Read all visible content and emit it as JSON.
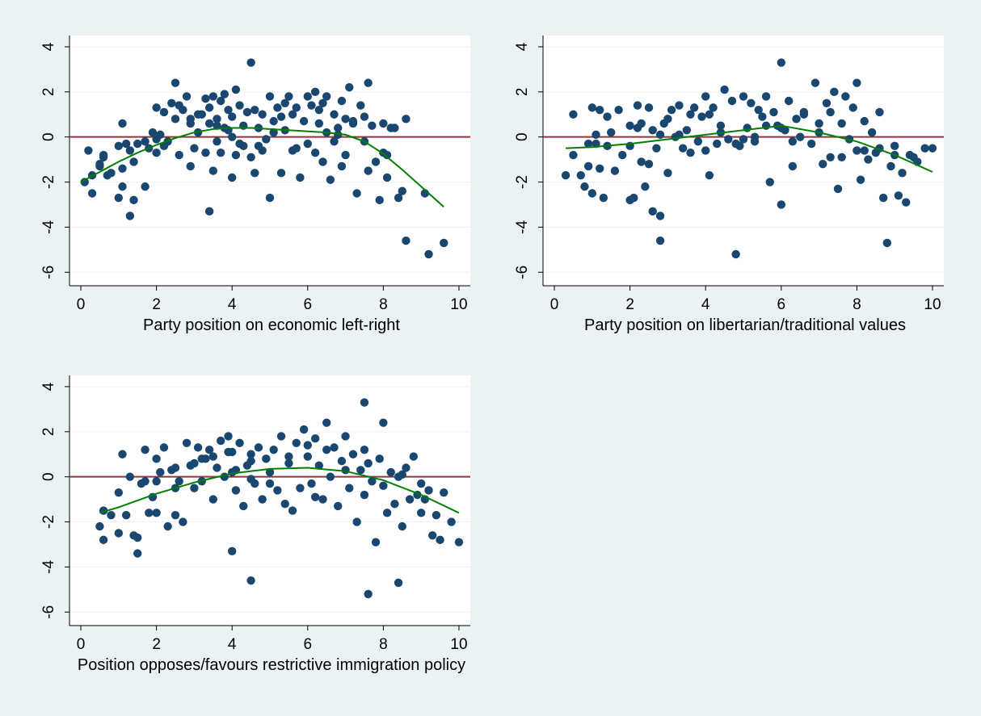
{
  "colors": {
    "background": "#eaf2f3",
    "plot_area": "#ffffff",
    "marker": "#1a476f",
    "reference_line": "#90353b",
    "fit_line": "#008000",
    "grid": "#eaf2f3",
    "text": "#000000"
  },
  "chart_data": [
    {
      "type": "scatter",
      "title": "",
      "xlabel": "Party position on economic left-right",
      "ylabel": "",
      "xlim": [
        -0.3,
        10.3
      ],
      "ylim": [
        -6.6,
        4.5
      ],
      "xticks": [
        "0",
        "2",
        "4",
        "6",
        "8",
        "10"
      ],
      "yticks": [
        "4",
        "2",
        "0",
        "-2",
        "-4",
        "-6"
      ],
      "grid": true,
      "reference_line_y": 0,
      "series": [
        {
          "kind": "points",
          "x": [
            0.1,
            0.2,
            0.3,
            0.5,
            0.5,
            0.6,
            0.7,
            0.8,
            1.0,
            1.0,
            1.1,
            1.1,
            1.2,
            1.3,
            1.3,
            1.4,
            1.4,
            1.7,
            1.7,
            1.8,
            1.9,
            2.0,
            2.0,
            2.0,
            2.1,
            2.2,
            2.3,
            2.4,
            2.5,
            2.5,
            2.6,
            2.6,
            2.7,
            2.8,
            2.9,
            2.9,
            3.0,
            3.1,
            3.2,
            3.3,
            3.3,
            3.4,
            3.4,
            3.4,
            3.5,
            3.5,
            3.6,
            3.6,
            3.7,
            3.7,
            3.8,
            3.8,
            3.9,
            4.0,
            4.0,
            4.1,
            4.1,
            4.2,
            4.2,
            4.3,
            4.4,
            4.5,
            4.5,
            4.6,
            4.6,
            4.7,
            4.7,
            4.8,
            4.9,
            5.0,
            5.0,
            5.1,
            5.2,
            5.3,
            5.3,
            5.4,
            5.4,
            5.5,
            5.6,
            5.7,
            5.8,
            5.9,
            6.0,
            6.0,
            6.1,
            6.2,
            6.2,
            6.3,
            6.3,
            6.4,
            6.4,
            6.5,
            6.5,
            6.6,
            6.7,
            6.8,
            6.9,
            6.9,
            7.0,
            7.0,
            7.1,
            7.2,
            7.3,
            7.4,
            7.5,
            7.6,
            7.6,
            7.7,
            7.8,
            7.9,
            8.0,
            8.0,
            8.1,
            8.2,
            8.3,
            8.4,
            8.5,
            8.6,
            8.6,
            9.1,
            9.2,
            9.6,
            0.6,
            1.1,
            1.5,
            2.9,
            3.9,
            4.3,
            5.6,
            6.7,
            7.5,
            8.1,
            3.1,
            3.6,
            4.8,
            5.1,
            6.8,
            2.2,
            4.0,
            5.7,
            7.2,
            0.3
          ],
          "y": [
            -2.0,
            -0.6,
            -1.7,
            -1.3,
            -1.2,
            -0.8,
            -1.7,
            -1.6,
            -2.7,
            -0.4,
            -2.2,
            0.6,
            -0.3,
            -3.5,
            -0.6,
            -2.8,
            -1.1,
            -0.2,
            -2.2,
            -0.5,
            0.2,
            1.3,
            -0.1,
            -0.7,
            0.1,
            1.1,
            -0.2,
            1.5,
            0.8,
            2.4,
            1.4,
            -0.8,
            1.2,
            1.8,
            -1.3,
            0.6,
            -0.5,
            0.2,
            1.0,
            1.7,
            -0.7,
            1.3,
            -3.3,
            0.6,
            -1.5,
            1.8,
            0.8,
            -0.2,
            1.6,
            -0.7,
            0.4,
            1.9,
            1.2,
            -1.8,
            0.9,
            -0.8,
            2.1,
            1.4,
            -0.3,
            0.5,
            1.1,
            3.3,
            -0.9,
            -1.6,
            1.2,
            0.4,
            -0.4,
            1.0,
            -0.1,
            1.8,
            -2.7,
            0.2,
            1.3,
            -1.6,
            0.9,
            1.5,
            0.3,
            1.8,
            -0.6,
            1.3,
            -1.8,
            0.7,
            1.8,
            -0.3,
            1.4,
            2.0,
            -0.7,
            0.6,
            1.2,
            1.5,
            -1.1,
            0.2,
            1.8,
            -1.9,
            1.0,
            0.4,
            -1.3,
            1.6,
            0.8,
            -0.8,
            2.2,
            0.6,
            -2.5,
            1.4,
            -0.2,
            2.4,
            -1.5,
            0.5,
            -1.1,
            -2.8,
            0.6,
            -0.7,
            -1.8,
            0.4,
            0.4,
            -2.7,
            -2.4,
            0.8,
            -4.6,
            -2.5,
            -5.2,
            -4.7,
            -0.9,
            -1.4,
            -0.3,
            0.8,
            0.3,
            -0.4,
            1.0,
            -0.2,
            0.9,
            -0.8,
            1.0,
            0.5,
            -0.6,
            0.7,
            0.1,
            -0.4,
            0.0,
            -0.5,
            0.7,
            -2.5
          ],
          "name": ""
        },
        {
          "kind": "fit",
          "x": [
            0.0,
            0.5,
            1.0,
            1.5,
            2.0,
            2.5,
            3.0,
            3.5,
            4.0,
            4.5,
            5.0,
            5.5,
            6.0,
            6.5,
            7.0,
            7.5,
            8.0,
            8.5,
            9.0,
            9.6
          ],
          "y": [
            -2.0,
            -1.55,
            -1.1,
            -0.7,
            -0.35,
            -0.05,
            0.2,
            0.35,
            0.4,
            0.4,
            0.35,
            0.3,
            0.25,
            0.2,
            0.1,
            -0.2,
            -0.75,
            -1.45,
            -2.2,
            -3.1
          ],
          "name": ""
        }
      ]
    },
    {
      "type": "scatter",
      "title": "",
      "xlabel": "Party position on libertarian/traditional values",
      "ylabel": "",
      "xlim": [
        -0.3,
        10.3
      ],
      "ylim": [
        -6.6,
        4.5
      ],
      "xticks": [
        "0",
        "2",
        "4",
        "6",
        "8",
        "10"
      ],
      "yticks": [
        "4",
        "2",
        "0",
        "-2",
        "-4",
        "-6"
      ],
      "grid": true,
      "reference_line_y": 0,
      "series": [
        {
          "kind": "points",
          "x": [
            0.3,
            0.5,
            0.5,
            0.7,
            0.8,
            0.9,
            1.0,
            1.0,
            1.1,
            1.2,
            1.2,
            1.3,
            1.4,
            1.6,
            1.7,
            1.8,
            2.0,
            2.0,
            2.1,
            2.2,
            2.3,
            2.3,
            2.4,
            2.5,
            2.5,
            2.6,
            2.7,
            2.8,
            2.8,
            2.9,
            3.0,
            3.1,
            3.2,
            3.3,
            3.4,
            3.5,
            3.6,
            3.7,
            3.8,
            3.9,
            4.0,
            4.0,
            4.1,
            4.2,
            4.3,
            4.4,
            4.5,
            4.6,
            4.7,
            4.8,
            4.9,
            5.0,
            5.1,
            5.2,
            5.3,
            5.4,
            5.5,
            5.6,
            5.7,
            5.8,
            5.9,
            6.0,
            6.0,
            6.1,
            6.2,
            6.3,
            6.4,
            6.5,
            6.6,
            6.8,
            6.9,
            7.0,
            7.1,
            7.2,
            7.3,
            7.4,
            7.5,
            7.6,
            7.7,
            7.8,
            7.9,
            8.0,
            8.1,
            8.2,
            8.3,
            8.4,
            8.5,
            8.6,
            8.7,
            8.8,
            8.9,
            9.0,
            9.1,
            9.2,
            9.3,
            9.4,
            9.6,
            9.8,
            10.0,
            4.8,
            6.0,
            2.8,
            2.6,
            1.1,
            3.0,
            5.0,
            7.0,
            8.0,
            1.5,
            2.2,
            3.6,
            4.4,
            5.6,
            6.6,
            7.6,
            8.6,
            9.0,
            3.3,
            5.3,
            6.3,
            7.3,
            4.1,
            2.0,
            1.4,
            0.9,
            8.2,
            9.5
          ],
          "y": [
            -1.7,
            1.0,
            -0.8,
            -1.7,
            -2.2,
            -0.3,
            1.3,
            -2.5,
            0.1,
            1.2,
            -1.4,
            -2.7,
            -0.4,
            -1.5,
            1.2,
            -0.8,
            -2.8,
            0.5,
            -2.7,
            1.4,
            -1.1,
            0.6,
            -2.2,
            1.3,
            -1.2,
            -3.3,
            -0.5,
            -3.5,
            -4.6,
            0.6,
            -1.6,
            1.2,
            0.0,
            1.4,
            -0.5,
            0.3,
            -0.7,
            1.3,
            -0.2,
            0.9,
            -0.6,
            1.8,
            -1.7,
            1.3,
            -0.3,
            0.5,
            2.1,
            -0.1,
            1.6,
            -5.2,
            -0.4,
            1.8,
            0.4,
            1.5,
            -0.2,
            1.2,
            0.9,
            1.8,
            -2.0,
            1.1,
            0.5,
            3.3,
            -3.0,
            0.3,
            1.6,
            -1.3,
            0.8,
            0.0,
            1.0,
            -0.3,
            2.4,
            0.2,
            -1.2,
            1.5,
            -0.9,
            2.0,
            -2.3,
            0.6,
            1.8,
            -0.1,
            1.3,
            2.4,
            -1.9,
            0.7,
            -1.0,
            0.2,
            -0.7,
            1.1,
            -2.7,
            -4.7,
            -1.3,
            -0.4,
            -2.6,
            -1.6,
            -2.9,
            -0.8,
            -1.1,
            -0.5,
            -0.5,
            -0.3,
            0.4,
            0.1,
            0.3,
            -0.3,
            0.8,
            -0.1,
            0.6,
            -0.6,
            0.2,
            0.4,
            1.0,
            0.2,
            0.5,
            1.1,
            -0.9,
            -0.5,
            -0.8,
            0.1,
            0.0,
            -0.2,
            1.1,
            1.0,
            -0.4,
            0.9,
            -1.3,
            -0.6,
            -0.9
          ],
          "name": ""
        },
        {
          "kind": "fit",
          "x": [
            0.3,
            1.0,
            2.0,
            3.0,
            4.0,
            5.0,
            6.0,
            7.0,
            8.0,
            9.0,
            10.0
          ],
          "y": [
            -0.5,
            -0.45,
            -0.3,
            -0.1,
            0.1,
            0.3,
            0.5,
            0.2,
            -0.2,
            -0.8,
            -1.55
          ],
          "name": ""
        }
      ]
    },
    {
      "type": "scatter",
      "title": "",
      "xlabel": "Position opposes/favours restrictive immigration policy",
      "ylabel": "",
      "xlim": [
        -0.3,
        10.3
      ],
      "ylim": [
        -6.6,
        4.5
      ],
      "xticks": [
        "0",
        "2",
        "4",
        "6",
        "8",
        "10"
      ],
      "yticks": [
        "4",
        "2",
        "0",
        "-2",
        "-4",
        "-6"
      ],
      "grid": true,
      "reference_line_y": 0,
      "series": [
        {
          "kind": "points",
          "x": [
            0.5,
            0.6,
            0.6,
            0.8,
            1.0,
            1.0,
            1.1,
            1.2,
            1.3,
            1.5,
            1.5,
            1.6,
            1.7,
            1.7,
            1.8,
            1.9,
            2.0,
            2.0,
            2.1,
            2.2,
            2.3,
            2.4,
            2.5,
            2.5,
            2.6,
            2.7,
            2.8,
            2.9,
            3.0,
            3.1,
            3.2,
            3.3,
            3.4,
            3.5,
            3.6,
            3.7,
            3.8,
            3.9,
            4.0,
            4.0,
            4.1,
            4.2,
            4.3,
            4.4,
            4.5,
            4.5,
            4.6,
            4.7,
            4.8,
            4.9,
            5.0,
            5.1,
            5.2,
            5.3,
            5.4,
            5.5,
            5.6,
            5.7,
            5.8,
            5.9,
            6.0,
            6.1,
            6.2,
            6.3,
            6.4,
            6.5,
            6.6,
            6.7,
            6.8,
            6.9,
            7.0,
            7.1,
            7.2,
            7.3,
            7.4,
            7.5,
            7.5,
            7.6,
            7.7,
            7.8,
            7.9,
            8.0,
            8.1,
            8.2,
            8.3,
            8.4,
            8.5,
            8.6,
            8.7,
            8.8,
            8.9,
            9.0,
            9.1,
            9.2,
            9.3,
            9.4,
            9.5,
            9.6,
            9.8,
            10.0,
            3.9,
            4.1,
            4.5,
            7.6,
            8.4,
            2.0,
            3.0,
            4.0,
            5.0,
            6.0,
            7.0,
            8.0,
            9.0,
            2.5,
            3.5,
            4.5,
            5.5,
            6.5,
            7.5,
            8.5,
            1.4,
            6.2,
            3.2
          ],
          "y": [
            -2.2,
            -2.8,
            -1.5,
            -1.7,
            -2.5,
            -0.7,
            1.0,
            -1.7,
            0.0,
            -3.4,
            -2.7,
            -0.3,
            1.2,
            -0.2,
            -1.6,
            -0.9,
            0.8,
            -1.6,
            0.2,
            1.3,
            -2.2,
            0.3,
            -1.7,
            -0.5,
            -0.2,
            -2.0,
            1.5,
            0.5,
            -0.5,
            1.3,
            -0.2,
            0.8,
            1.2,
            -1.0,
            0.4,
            1.6,
            0.0,
            1.1,
            -3.3,
            0.2,
            -0.6,
            1.5,
            -1.3,
            0.5,
            -4.6,
            1.0,
            -0.3,
            1.3,
            -1.0,
            0.8,
            -0.3,
            1.2,
            -0.6,
            1.8,
            -1.2,
            0.9,
            -1.5,
            1.5,
            -0.5,
            2.1,
            1.4,
            -0.3,
            1.7,
            0.5,
            -1.0,
            2.4,
            0.0,
            1.3,
            -1.3,
            0.7,
            1.8,
            -0.5,
            1.0,
            -2.0,
            0.3,
            3.3,
            1.2,
            -5.2,
            -0.2,
            -2.9,
            0.8,
            2.4,
            -1.6,
            0.2,
            -1.2,
            -4.7,
            -2.2,
            0.4,
            -1.0,
            0.9,
            -0.8,
            -1.6,
            -1.0,
            -0.6,
            -2.6,
            -1.7,
            -2.8,
            -0.7,
            -2.0,
            -2.9,
            1.8,
            0.3,
            0.7,
            0.6,
            0.0,
            -0.2,
            0.6,
            1.1,
            0.2,
            0.9,
            0.3,
            -0.4,
            -0.3,
            0.4,
            0.9,
            -0.1,
            0.6,
            1.2,
            -0.8,
            0.1,
            -2.6,
            -0.9,
            0.8
          ],
          "name": ""
        },
        {
          "kind": "fit",
          "x": [
            0.5,
            1.0,
            2.0,
            3.0,
            4.0,
            5.0,
            6.0,
            7.0,
            8.0,
            9.0,
            10.0
          ],
          "y": [
            -1.6,
            -1.35,
            -0.75,
            -0.25,
            0.15,
            0.35,
            0.4,
            0.25,
            -0.15,
            -0.8,
            -1.6
          ],
          "name": ""
        }
      ]
    }
  ]
}
